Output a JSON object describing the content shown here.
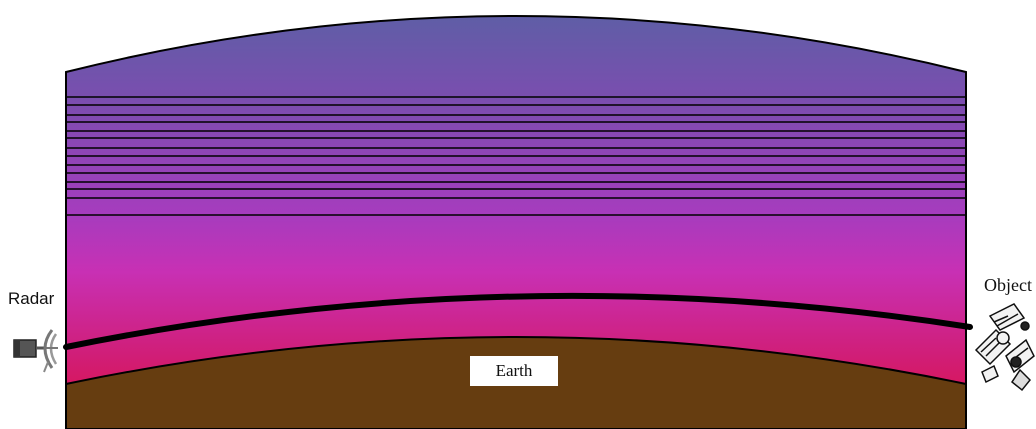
{
  "labels": {
    "radar": "Radar",
    "object": "Object",
    "earth": "Earth"
  },
  "colors": {
    "atmosphere_top": "#5f5ea6",
    "atmosphere_upper": "#7d4cb0",
    "atmosphere_mid": "#a63cbe",
    "atmosphere_lower": "#c830b4",
    "atmosphere_low": "#d01e78",
    "atmosphere_bottom": "#e00e40",
    "earth": "#663d10",
    "ray": "#000000",
    "layer_lines": "#000000"
  },
  "icons": {
    "radar": "radar-dish-icon",
    "object": "satellite-icon"
  }
}
